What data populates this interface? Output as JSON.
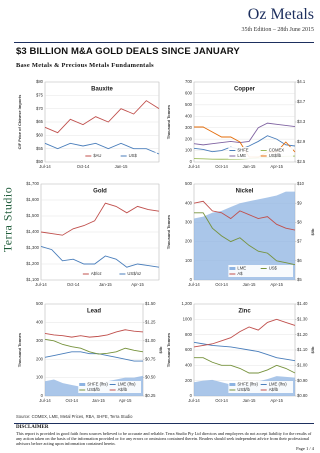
{
  "header": {
    "title": "Oz Metals",
    "edition": "35th Edition – 28th June 2015"
  },
  "side_label": "Terra Studio",
  "headline": "$3 BILLION M&A GOLD DEALS SINCE JANUARY",
  "subtitle": "Base Metals & Precious Metals Fundamentals",
  "charts": [
    {
      "type": "line",
      "title": "Bauxite",
      "y_label": "CIF Price of Chinese Imports",
      "categories": [
        "Jul-14",
        null,
        null,
        "Oct-14",
        null,
        null,
        "Jan-15",
        null,
        null,
        null
      ],
      "ylim": [
        50,
        80
      ],
      "yticks": [
        {
          "value": 50,
          "label": "$50"
        },
        {
          "value": 55,
          "label": "$55"
        },
        {
          "value": 60,
          "label": "$60"
        },
        {
          "value": 65,
          "label": "$65"
        },
        {
          "value": 70,
          "label": "$70"
        },
        {
          "value": 75,
          "label": "$75"
        },
        {
          "value": 80,
          "label": "$80"
        }
      ],
      "series": [
        {
          "name": "$AU",
          "color": "#c0504d",
          "values": [
            63,
            61,
            66,
            64,
            67,
            65,
            70,
            68,
            73,
            70
          ]
        },
        {
          "name": "US$",
          "color": "#4a7ebb",
          "values": [
            57,
            55,
            57,
            56,
            57,
            55,
            57,
            55,
            55,
            53
          ]
        }
      ]
    },
    {
      "type": "line",
      "title": "Copper",
      "y_label": "Thousand Tonnes",
      "categories": [
        "Jul-14",
        null,
        null,
        "Oct-14",
        null,
        null,
        "Jan-15",
        null,
        null,
        "Apr-15",
        null,
        null
      ],
      "ylim": [
        0,
        700
      ],
      "yticks": [
        0,
        100,
        200,
        300,
        400,
        500,
        600,
        700
      ],
      "y2lim": [
        2.5,
        4.1
      ],
      "y2ticks": [
        {
          "value": 2.5,
          "label": "$2.5"
        },
        {
          "value": 2.9,
          "label": "$2.9"
        },
        {
          "value": 3.3,
          "label": "$3.3"
        },
        {
          "value": 3.7,
          "label": "$3.7"
        },
        {
          "value": 4.1,
          "label": "$4.1"
        }
      ],
      "series": [
        {
          "name": "SHFE",
          "color": "#4a7ebb",
          "values": [
            120,
            110,
            90,
            100,
            130,
            110,
            140,
            180,
            230,
            200,
            150,
            140
          ]
        },
        {
          "name": "COMEX",
          "color": "#9bbb59",
          "values": [
            30,
            28,
            25,
            24,
            25,
            26,
            30,
            35,
            40,
            45,
            50,
            52
          ]
        },
        {
          "name": "LME",
          "color": "#8064a2",
          "values": [
            160,
            150,
            160,
            170,
            180,
            170,
            180,
            300,
            340,
            330,
            320,
            310
          ]
        },
        {
          "name": "US$/lb",
          "color": "#e46c0a",
          "axis": "y2",
          "values": [
            3.2,
            3.2,
            3.1,
            3.0,
            3.0,
            2.9,
            2.6,
            2.6,
            2.7,
            2.7,
            2.9,
            2.7
          ]
        }
      ]
    },
    {
      "type": "line",
      "title": "Gold",
      "categories": [
        "Jul-14",
        null,
        null,
        "Oct-14",
        null,
        null,
        "Jan-15",
        null,
        null,
        "Apr-15",
        null,
        null
      ],
      "ylim": [
        1100,
        1700
      ],
      "yticks": [
        {
          "value": 1100,
          "label": "$1,100"
        },
        {
          "value": 1200,
          "label": "$1,200"
        },
        {
          "value": 1300,
          "label": "$1,300"
        },
        {
          "value": 1400,
          "label": "$1,400"
        },
        {
          "value": 1500,
          "label": "$1,500"
        },
        {
          "value": 1600,
          "label": "$1,600"
        },
        {
          "value": 1700,
          "label": "$1,700"
        }
      ],
      "series": [
        {
          "name": "A$/oz",
          "color": "#c0504d",
          "values": [
            1400,
            1390,
            1380,
            1420,
            1440,
            1470,
            1580,
            1560,
            1520,
            1560,
            1540,
            1530
          ]
        },
        {
          "name": "US$/oz",
          "color": "#4a7ebb",
          "values": [
            1310,
            1290,
            1220,
            1230,
            1200,
            1200,
            1250,
            1230,
            1180,
            1200,
            1190,
            1180
          ]
        }
      ]
    },
    {
      "type": "line",
      "title": "Nickel",
      "y_label": "Thousand Tonnes",
      "y2_label": "$/lb",
      "categories": [
        "Jul-14",
        null,
        null,
        "Oct-14",
        null,
        null,
        "Jan-15",
        null,
        null,
        "Apr-15",
        null,
        null
      ],
      "ylim": [
        0,
        500
      ],
      "yticks": [
        0,
        100,
        200,
        300,
        400,
        500
      ],
      "y2lim": [
        5,
        10
      ],
      "y2ticks": [
        {
          "value": 5,
          "label": "$5"
        },
        {
          "value": 6,
          "label": "$6"
        },
        {
          "value": 7,
          "label": "$7"
        },
        {
          "value": 8,
          "label": "$8"
        },
        {
          "value": 9,
          "label": "$9"
        },
        {
          "value": 10,
          "label": "$10"
        }
      ],
      "series": [
        {
          "name": "LME",
          "color": "#8db3e2",
          "area": true,
          "values": [
            320,
            330,
            350,
            360,
            380,
            400,
            410,
            420,
            430,
            440,
            460,
            460
          ]
        },
        {
          "name": "US$",
          "color": "#76923c",
          "axis": "y2",
          "values": [
            8.5,
            8.5,
            7.7,
            7.3,
            7.0,
            7.2,
            6.8,
            6.5,
            6.4,
            6.0,
            5.9,
            5.8
          ]
        },
        {
          "name": "A$",
          "color": "#c0504d",
          "axis": "y2",
          "values": [
            9.0,
            9.1,
            8.6,
            8.5,
            8.2,
            8.6,
            8.4,
            8.2,
            8.3,
            7.9,
            7.7,
            7.6
          ]
        }
      ]
    },
    {
      "type": "line",
      "title": "Lead",
      "y_label": "Thousand Tonnes",
      "y2_label": "$/lb",
      "categories": [
        "Jul-14",
        null,
        null,
        "Oct-14",
        null,
        null,
        "Jan-15",
        null,
        null,
        "Apr-15",
        null,
        null
      ],
      "ylim": [
        0,
        500
      ],
      "yticks": [
        0,
        100,
        200,
        300,
        400,
        500
      ],
      "y2lim": [
        0.25,
        1.5
      ],
      "y2ticks": [
        {
          "value": 0.25,
          "label": "$0.25"
        },
        {
          "value": 0.5,
          "label": "$0.50"
        },
        {
          "value": 0.75,
          "label": "$0.75"
        },
        {
          "value": 1,
          "label": "$1.00"
        },
        {
          "value": 1.25,
          "label": "$1.25"
        },
        {
          "value": 1.5,
          "label": "$1.50"
        }
      ],
      "series": [
        {
          "name": "SHFE (lhs)",
          "color": "#8db3e2",
          "area": true,
          "values": [
            80,
            90,
            70,
            60,
            50,
            60,
            70,
            80,
            90,
            100,
            100,
            110
          ]
        },
        {
          "name": "LME (lhs)",
          "color": "#4a7ebb",
          "values": [
            210,
            220,
            230,
            240,
            240,
            230,
            230,
            220,
            210,
            200,
            190,
            190
          ]
        },
        {
          "name": "US$/lb",
          "color": "#76923c",
          "axis": "y2",
          "values": [
            1.02,
            1.0,
            0.95,
            0.92,
            0.9,
            0.85,
            0.82,
            0.83,
            0.85,
            0.9,
            0.87,
            0.85
          ]
        },
        {
          "name": "A$/lb",
          "color": "#c0504d",
          "axis": "y2",
          "values": [
            1.1,
            1.08,
            1.07,
            1.05,
            1.07,
            1.05,
            1.06,
            1.08,
            1.12,
            1.15,
            1.13,
            1.12
          ]
        }
      ]
    },
    {
      "type": "line",
      "title": "Zinc",
      "y_label": "Thousand Tonnes",
      "y2_label": "$/lb",
      "categories": [
        "Jul-14",
        null,
        null,
        "Oct-14",
        null,
        null,
        "Jan-15",
        null,
        null,
        "Apr-15",
        null,
        null
      ],
      "ylim": [
        0,
        1200
      ],
      "yticks": [
        0,
        200,
        400,
        600,
        800,
        1000,
        {
          "value": 1200,
          "label": "1,200"
        }
      ],
      "y2lim": [
        0.8,
        1.4
      ],
      "y2ticks": [
        {
          "value": 0.8,
          "label": "$0.80"
        },
        {
          "value": 0.9,
          "label": "$0.90"
        },
        {
          "value": 1,
          "label": "$1.00"
        },
        {
          "value": 1.1,
          "label": "$1.10"
        },
        {
          "value": 1.2,
          "label": "$1.20"
        },
        {
          "value": 1.3,
          "label": "$1.30"
        },
        {
          "value": 1.4,
          "label": "$1.40"
        }
      ],
      "series": [
        {
          "name": "SHFE (lhs)",
          "color": "#8db3e2",
          "area": true,
          "values": [
            180,
            200,
            210,
            180,
            150,
            160,
            170,
            190,
            220,
            260,
            250,
            240
          ]
        },
        {
          "name": "LME (lhs)",
          "color": "#4a7ebb",
          "values": [
            700,
            680,
            660,
            650,
            640,
            620,
            600,
            580,
            540,
            500,
            480,
            460
          ]
        },
        {
          "name": "US$/lb",
          "color": "#76923c",
          "axis": "y2",
          "values": [
            1.05,
            1.05,
            1.02,
            1.0,
            1.0,
            0.98,
            0.95,
            0.95,
            0.97,
            1.0,
            0.98,
            0.95
          ]
        },
        {
          "name": "A$/lb",
          "color": "#c0504d",
          "axis": "y2",
          "values": [
            1.12,
            1.13,
            1.14,
            1.16,
            1.18,
            1.22,
            1.25,
            1.23,
            1.28,
            1.3,
            1.28,
            1.26
          ]
        }
      ]
    }
  ],
  "source": "Source: COMEX, LME, Metal Prices, RBA, SHFE, Terra Studio",
  "disclaimer": {
    "title": "DISCLAIMER",
    "text": "This report is provided in good faith from sources believed to be accurate and reliable. Terra Studio Pty Ltd directors and employees do not accept liability for the results of any action taken on the basis of the information provided or for any errors or omissions contained therein. Readers should seek independent advice from their professional advisors before acting upon information contained herein."
  },
  "page": "Page 1 / 4"
}
